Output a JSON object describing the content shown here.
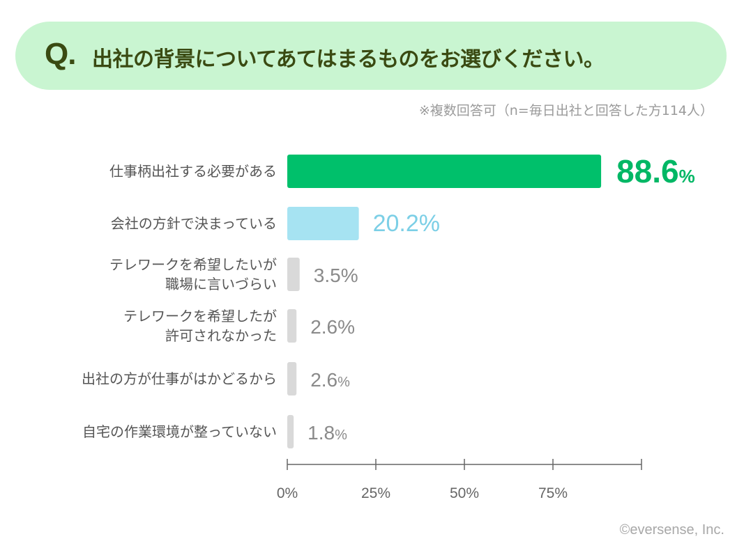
{
  "question": {
    "prefix": "Q.",
    "text": "出社の背景についてあてはまるものをお選びください。"
  },
  "footnote": "※複数回答可（n=毎日出社と回答した方114人）",
  "chart_data": {
    "type": "bar",
    "orientation": "horizontal",
    "categories": [
      [
        "仕事柄出社する必要がある"
      ],
      [
        "会社の方針で決まっている"
      ],
      [
        "テレワークを希望したいが",
        "職場に言いづらい"
      ],
      [
        "テレワークを希望したが",
        "許可されなかった"
      ],
      [
        "出社の方が仕事がはかどるから"
      ],
      [
        "自宅の作業環境が整っていない"
      ]
    ],
    "values": [
      88.6,
      20.2,
      3.5,
      2.6,
      2.6,
      1.8
    ],
    "value_labels": [
      "88.6",
      "20.2%",
      "3.5%",
      "2.6%",
      "2.6",
      "1.8"
    ],
    "value_suffix": [
      "%",
      "",
      "",
      "",
      "%",
      "%"
    ],
    "bar_colors": [
      "#00c06b",
      "#a6e3f2",
      "#d9d9d9",
      "#d9d9d9",
      "#d9d9d9",
      "#d9d9d9"
    ],
    "label_colors": [
      "#00b765",
      "#7ccfe6",
      "#8a8a8a",
      "#8a8a8a",
      "#8a8a8a",
      "#8a8a8a"
    ],
    "x_ticks": [
      "0%",
      "25%",
      "50%",
      "75%"
    ],
    "xlim": [
      0,
      100
    ],
    "grid": false
  },
  "copyright": "©eversense, Inc."
}
